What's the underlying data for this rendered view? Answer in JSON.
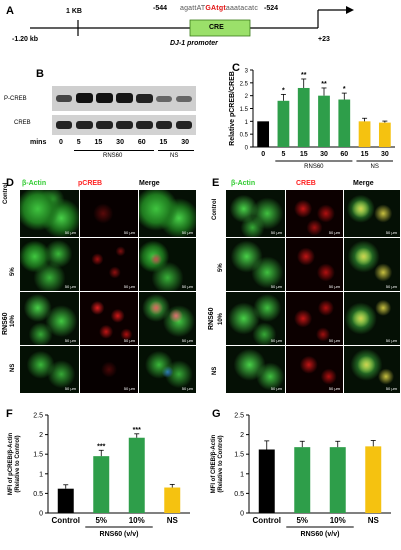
{
  "panels": {
    "A": "A",
    "B": "B",
    "C": "C",
    "D": "D",
    "E": "E",
    "F": "F",
    "G": "G"
  },
  "promoter": {
    "kb_label": "1 KB",
    "start": "-1.20 kb",
    "cre_left": "-544",
    "cre_right": "-524",
    "sequence_left": "agattAT",
    "sequence_mid": "GAtgt",
    "sequence_right": "aaatacatc",
    "cre_box": "CRE",
    "end": "+23",
    "name": "DJ-1 promoter"
  },
  "blot": {
    "row1": "P-CREB",
    "row2": "CREB",
    "mins_label": "mins",
    "lanes": [
      "0",
      "5",
      "15",
      "30",
      "60",
      "15",
      "30"
    ],
    "group_rns": "RNS60",
    "group_ns": "NS"
  },
  "chart_data": [
    {
      "type": "bar",
      "panel": "C",
      "categories": [
        "0",
        "5",
        "15",
        "30",
        "60",
        "15",
        "30"
      ],
      "values": [
        1.0,
        1.8,
        2.3,
        2.0,
        1.85,
        1.0,
        0.95
      ],
      "errors": [
        0.0,
        0.25,
        0.35,
        0.3,
        0.25,
        0.12,
        0.06
      ],
      "significance": [
        "",
        "*",
        "**",
        "**",
        "*",
        "",
        ""
      ],
      "colors": [
        "#000000",
        "#2e9e4a",
        "#2e9e4a",
        "#2e9e4a",
        "#2e9e4a",
        "#f5c210",
        "#f5c210"
      ],
      "ylabel": "Relative pCREB/CREB",
      "ylim": [
        0,
        3
      ],
      "yticks": [
        "0",
        "0.5",
        "1",
        "1.5",
        "2",
        "2.5",
        "3"
      ],
      "group_labels": [
        "RNS60",
        "NS"
      ]
    },
    {
      "type": "bar",
      "panel": "F",
      "categories": [
        "Control",
        "5%",
        "10%",
        "NS"
      ],
      "values": [
        0.62,
        1.45,
        1.92,
        0.65
      ],
      "errors": [
        0.1,
        0.15,
        0.1,
        0.08
      ],
      "significance": [
        "",
        "***",
        "***",
        ""
      ],
      "colors": [
        "#000000",
        "#2e9e4a",
        "#2e9e4a",
        "#f5c210"
      ],
      "ylabel": "MFI of pCREB/β-Actin (Relative to Control)",
      "ylim": [
        0,
        2.5
      ],
      "yticks": [
        "0",
        "0.5",
        "1",
        "1.5",
        "2",
        "2.5"
      ],
      "xlabel": "RNS60 (v/v)"
    },
    {
      "type": "bar",
      "panel": "G",
      "categories": [
        "Control",
        "5%",
        "10%",
        "NS"
      ],
      "values": [
        1.62,
        1.68,
        1.68,
        1.7
      ],
      "errors": [
        0.22,
        0.15,
        0.15,
        0.15
      ],
      "significance": [
        "",
        "",
        "",
        ""
      ],
      "colors": [
        "#000000",
        "#2e9e4a",
        "#2e9e4a",
        "#f5c210"
      ],
      "ylabel": "MFI of CREB/β-Actin (Relative to Control)",
      "ylim": [
        0,
        2.5
      ],
      "yticks": [
        "0",
        "0.5",
        "1",
        "1.5",
        "2",
        "2.5"
      ],
      "xlabel": "RNS60 (v/v)"
    }
  ],
  "micro_D": {
    "headers": [
      "β-Actin",
      "pCREB",
      "Merge"
    ],
    "header_colors": [
      "#33cc33",
      "#ff2222",
      "#ffffff"
    ],
    "rows": [
      "Control",
      "5%",
      "10%",
      "NS"
    ],
    "group": "RNS60",
    "scale": "50 μm"
  },
  "micro_E": {
    "headers": [
      "β-Actin",
      "CREB",
      "Merge"
    ],
    "header_colors": [
      "#33cc33",
      "#ff2222",
      "#ffffff"
    ],
    "rows": [
      "Control",
      "5%",
      "10%",
      "NS"
    ],
    "group": "RNS60",
    "scale": "50 μm"
  }
}
